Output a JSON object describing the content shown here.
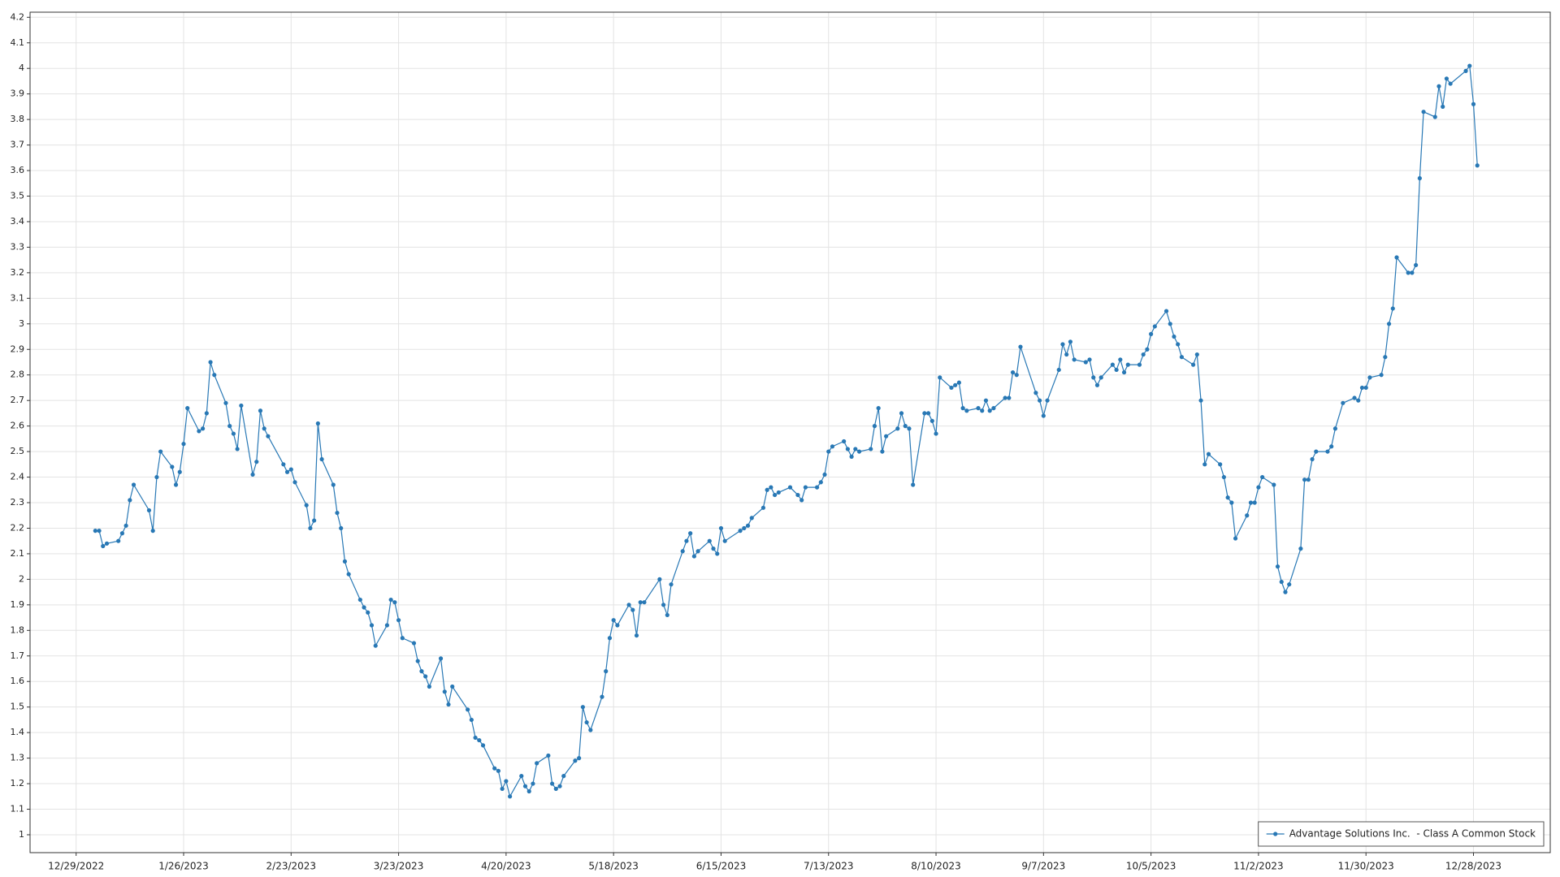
{
  "chart_data": {
    "type": "line",
    "x": [
      "1/3/2023",
      "1/4/2023",
      "1/5/2023",
      "1/6/2023",
      "1/9/2023",
      "1/10/2023",
      "1/11/2023",
      "1/12/2023",
      "1/13/2023",
      "1/17/2023",
      "1/18/2023",
      "1/19/2023",
      "1/20/2023",
      "1/23/2023",
      "1/24/2023",
      "1/25/2023",
      "1/26/2023",
      "1/27/2023",
      "1/30/2023",
      "1/31/2023",
      "2/1/2023",
      "2/2/2023",
      "2/3/2023",
      "2/6/2023",
      "2/7/2023",
      "2/8/2023",
      "2/9/2023",
      "2/10/2023",
      "2/13/2023",
      "2/14/2023",
      "2/15/2023",
      "2/16/2023",
      "2/17/2023",
      "2/21/2023",
      "2/22/2023",
      "2/23/2023",
      "2/24/2023",
      "2/27/2023",
      "2/28/2023",
      "3/1/2023",
      "3/2/2023",
      "3/3/2023",
      "3/6/2023",
      "3/7/2023",
      "3/8/2023",
      "3/9/2023",
      "3/10/2023",
      "3/13/2023",
      "3/14/2023",
      "3/15/2023",
      "3/16/2023",
      "3/17/2023",
      "3/20/2023",
      "3/21/2023",
      "3/22/2023",
      "3/23/2023",
      "3/24/2023",
      "3/27/2023",
      "3/28/2023",
      "3/29/2023",
      "3/30/2023",
      "3/31/2023",
      "4/3/2023",
      "4/4/2023",
      "4/5/2023",
      "4/6/2023",
      "4/10/2023",
      "4/11/2023",
      "4/12/2023",
      "4/13/2023",
      "4/14/2023",
      "4/17/2023",
      "4/18/2023",
      "4/19/2023",
      "4/20/2023",
      "4/21/2023",
      "4/24/2023",
      "4/25/2023",
      "4/26/2023",
      "4/27/2023",
      "4/28/2023",
      "5/1/2023",
      "5/2/2023",
      "5/3/2023",
      "5/4/2023",
      "5/5/2023",
      "5/8/2023",
      "5/9/2023",
      "5/10/2023",
      "5/11/2023",
      "5/12/2023",
      "5/15/2023",
      "5/16/2023",
      "5/17/2023",
      "5/18/2023",
      "5/19/2023",
      "5/22/2023",
      "5/23/2023",
      "5/24/2023",
      "5/25/2023",
      "5/26/2023",
      "5/30/2023",
      "5/31/2023",
      "6/1/2023",
      "6/2/2023",
      "6/5/2023",
      "6/6/2023",
      "6/7/2023",
      "6/8/2023",
      "6/9/2023",
      "6/12/2023",
      "6/13/2023",
      "6/14/2023",
      "6/15/2023",
      "6/16/2023",
      "6/20/2023",
      "6/21/2023",
      "6/22/2023",
      "6/23/2023",
      "6/26/2023",
      "6/27/2023",
      "6/28/2023",
      "6/29/2023",
      "6/30/2023",
      "7/3/2023",
      "7/5/2023",
      "7/6/2023",
      "7/7/2023",
      "7/10/2023",
      "7/11/2023",
      "7/12/2023",
      "7/13/2023",
      "7/14/2023",
      "7/17/2023",
      "7/18/2023",
      "7/19/2023",
      "7/20/2023",
      "7/21/2023",
      "7/24/2023",
      "7/25/2023",
      "7/26/2023",
      "7/27/2023",
      "7/28/2023",
      "7/31/2023",
      "8/1/2023",
      "8/2/2023",
      "8/3/2023",
      "8/4/2023",
      "8/7/2023",
      "8/8/2023",
      "8/9/2023",
      "8/10/2023",
      "8/11/2023",
      "8/14/2023",
      "8/15/2023",
      "8/16/2023",
      "8/17/2023",
      "8/18/2023",
      "8/21/2023",
      "8/22/2023",
      "8/23/2023",
      "8/24/2023",
      "8/25/2023",
      "8/28/2023",
      "8/29/2023",
      "8/30/2023",
      "8/31/2023",
      "9/1/2023",
      "9/5/2023",
      "9/6/2023",
      "9/7/2023",
      "9/8/2023",
      "9/11/2023",
      "9/12/2023",
      "9/13/2023",
      "9/14/2023",
      "9/15/2023",
      "9/18/2023",
      "9/19/2023",
      "9/20/2023",
      "9/21/2023",
      "9/22/2023",
      "9/25/2023",
      "9/26/2023",
      "9/27/2023",
      "9/28/2023",
      "9/29/2023",
      "10/2/2023",
      "10/3/2023",
      "10/4/2023",
      "10/5/2023",
      "10/6/2023",
      "10/9/2023",
      "10/10/2023",
      "10/11/2023",
      "10/12/2023",
      "10/13/2023",
      "10/16/2023",
      "10/17/2023",
      "10/18/2023",
      "10/19/2023",
      "10/20/2023",
      "10/23/2023",
      "10/24/2023",
      "10/25/2023",
      "10/26/2023",
      "10/27/2023",
      "10/30/2023",
      "10/31/2023",
      "11/1/2023",
      "11/2/2023",
      "11/3/2023",
      "11/6/2023",
      "11/7/2023",
      "11/8/2023",
      "11/9/2023",
      "11/10/2023",
      "11/13/2023",
      "11/14/2023",
      "11/15/2023",
      "11/16/2023",
      "11/17/2023",
      "11/20/2023",
      "11/21/2023",
      "11/22/2023",
      "11/24/2023",
      "11/27/2023",
      "11/28/2023",
      "11/29/2023",
      "11/30/2023",
      "12/1/2023",
      "12/4/2023",
      "12/5/2023",
      "12/6/2023",
      "12/7/2023",
      "12/8/2023",
      "12/11/2023",
      "12/12/2023",
      "12/13/2023",
      "12/14/2023",
      "12/15/2023",
      "12/18/2023",
      "12/19/2023",
      "12/20/2023",
      "12/21/2023",
      "12/22/2023",
      "12/26/2023",
      "12/27/2023",
      "12/28/2023",
      "12/29/2023"
    ],
    "series": [
      {
        "name": "Advantage Solutions Inc.  - Class A Common Stock",
        "color": "#2878b5",
        "values": [
          2.19,
          2.19,
          2.13,
          2.14,
          2.15,
          2.18,
          2.21,
          2.31,
          2.37,
          2.27,
          2.19,
          2.4,
          2.5,
          2.44,
          2.37,
          2.42,
          2.53,
          2.67,
          2.58,
          2.59,
          2.65,
          2.85,
          2.8,
          2.69,
          2.6,
          2.57,
          2.51,
          2.68,
          2.41,
          2.46,
          2.66,
          2.59,
          2.56,
          2.45,
          2.42,
          2.43,
          2.38,
          2.29,
          2.2,
          2.23,
          2.61,
          2.47,
          2.37,
          2.26,
          2.2,
          2.07,
          2.02,
          1.92,
          1.89,
          1.87,
          1.82,
          1.74,
          1.82,
          1.92,
          1.91,
          1.84,
          1.77,
          1.75,
          1.68,
          1.64,
          1.62,
          1.58,
          1.69,
          1.56,
          1.51,
          1.58,
          1.49,
          1.45,
          1.38,
          1.37,
          1.35,
          1.26,
          1.25,
          1.18,
          1.21,
          1.15,
          1.23,
          1.19,
          1.17,
          1.2,
          1.28,
          1.31,
          1.2,
          1.18,
          1.19,
          1.23,
          1.29,
          1.3,
          1.5,
          1.44,
          1.41,
          1.54,
          1.64,
          1.77,
          1.84,
          1.82,
          1.9,
          1.88,
          1.78,
          1.91,
          1.91,
          2.0,
          1.9,
          1.86,
          1.98,
          2.11,
          2.15,
          2.18,
          2.09,
          2.11,
          2.15,
          2.12,
          2.1,
          2.2,
          2.15,
          2.19,
          2.2,
          2.21,
          2.24,
          2.28,
          2.35,
          2.36,
          2.33,
          2.34,
          2.36,
          2.33,
          2.31,
          2.36,
          2.36,
          2.38,
          2.41,
          2.5,
          2.52,
          2.54,
          2.51,
          2.48,
          2.51,
          2.5,
          2.51,
          2.6,
          2.67,
          2.5,
          2.56,
          2.59,
          2.65,
          2.6,
          2.59,
          2.37,
          2.65,
          2.65,
          2.62,
          2.57,
          2.79,
          2.75,
          2.76,
          2.77,
          2.67,
          2.66,
          2.67,
          2.66,
          2.7,
          2.66,
          2.67,
          2.71,
          2.71,
          2.81,
          2.8,
          2.91,
          2.73,
          2.7,
          2.64,
          2.7,
          2.82,
          2.92,
          2.88,
          2.93,
          2.86,
          2.85,
          2.86,
          2.79,
          2.76,
          2.79,
          2.84,
          2.82,
          2.86,
          2.81,
          2.84,
          2.84,
          2.88,
          2.9,
          2.96,
          2.99,
          3.05,
          3.0,
          2.95,
          2.92,
          2.87,
          2.84,
          2.88,
          2.7,
          2.45,
          2.49,
          2.45,
          2.4,
          2.32,
          2.3,
          2.16,
          2.25,
          2.3,
          2.3,
          2.36,
          2.4,
          2.37,
          2.05,
          1.99,
          1.95,
          1.98,
          2.12,
          2.39,
          2.39,
          2.47,
          2.5,
          2.5,
          2.52,
          2.59,
          2.69,
          2.71,
          2.7,
          2.75,
          2.75,
          2.79,
          2.8,
          2.87,
          3.0,
          3.06,
          3.26,
          3.2,
          3.2,
          3.23,
          3.57,
          3.83,
          3.81,
          3.93,
          3.85,
          3.96,
          3.94,
          3.99,
          4.01,
          3.86,
          3.62
        ]
      }
    ],
    "xlim": [
      "12/17/2022",
      "1/17/2024"
    ],
    "xticks": [
      "12/29/2022",
      "1/26/2023",
      "2/23/2023",
      "3/23/2023",
      "4/20/2023",
      "5/18/2023",
      "6/15/2023",
      "7/13/2023",
      "8/10/2023",
      "9/7/2023",
      "10/5/2023",
      "11/2/2023",
      "11/30/2023",
      "12/28/2023"
    ],
    "ylim": [
      0.93,
      4.22
    ],
    "yticks": [
      1,
      1.1,
      1.2,
      1.3,
      1.4,
      1.5,
      1.6,
      1.7,
      1.8,
      1.9,
      2,
      2.1,
      2.2,
      2.3,
      2.4,
      2.5,
      2.6,
      2.7,
      2.8,
      2.9,
      3,
      3.1,
      3.2,
      3.3,
      3.4,
      3.5,
      3.6,
      3.7,
      3.8,
      3.9,
      4,
      4.1,
      4.2
    ],
    "grid": true,
    "legend": "lower right"
  }
}
